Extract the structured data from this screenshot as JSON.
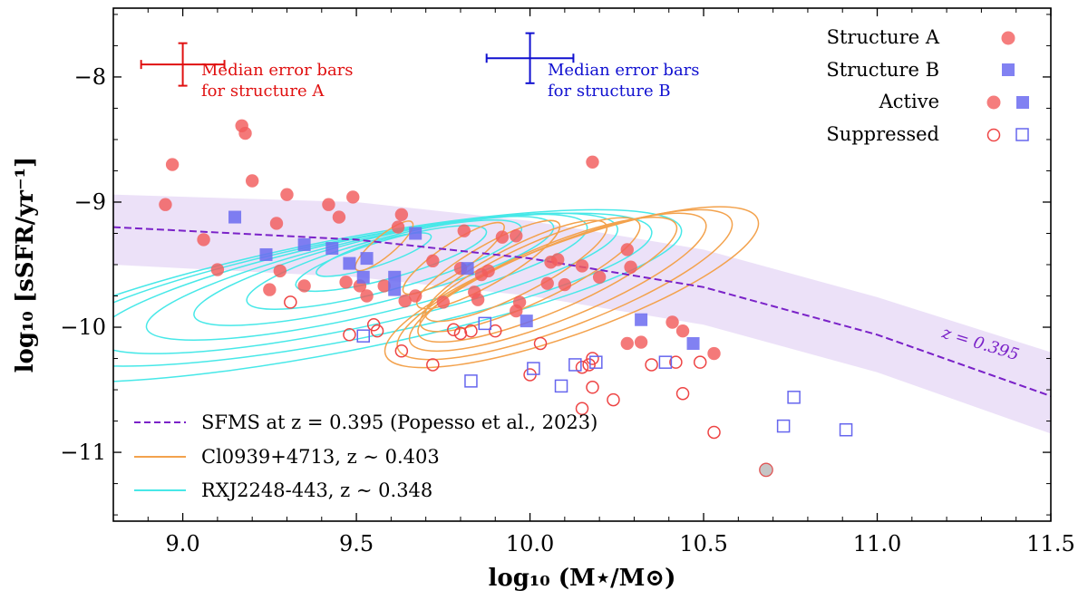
{
  "chart_data": {
    "type": "scatter",
    "xlabel": "log₁₀ (M⋆/M⊙)",
    "ylabel": "log₁₀ [sSFR/yr⁻¹]",
    "xlim": [
      8.8,
      11.5
    ],
    "ylim": [
      -11.55,
      -7.45
    ],
    "x_ticks": [
      9.0,
      9.5,
      10.0,
      10.5,
      11.0,
      11.5
    ],
    "x_tick_labels": [
      "9.0",
      "9.5",
      "10.0",
      "10.5",
      "11.0",
      "11.5"
    ],
    "y_ticks": [
      -8,
      -9,
      -10,
      -11
    ],
    "y_tick_labels": [
      "−8",
      "−9",
      "−10",
      "−11"
    ],
    "colors": {
      "structure_a": "#f25c5c",
      "structure_b": "#6b6bf0",
      "structure_a_open": "#ee4444",
      "structure_b_open": "#6666ee",
      "sfms": "#7a22c8",
      "sfms_band": "#e9dcf7",
      "cl0939": "#f3a24d",
      "rxj2248": "#47e8e8",
      "error_a": "#e01010",
      "error_b": "#1010d0"
    },
    "error_bars": [
      {
        "x": 9.0,
        "y": -7.9,
        "xerr": 0.12,
        "yerr": 0.17,
        "color": "error_a",
        "label_lines": [
          "Median error bars",
          "for structure A"
        ]
      },
      {
        "x": 10.0,
        "y": -7.85,
        "xerr": 0.125,
        "yerr": 0.2,
        "color": "error_b",
        "label_lines": [
          "Median error bars",
          "for structure B"
        ]
      }
    ],
    "legend_top": {
      "position": "top-right",
      "entries": [
        {
          "label": "Structure A",
          "markers": [
            "circle_a"
          ]
        },
        {
          "label": "Structure B",
          "markers": [
            "square_b"
          ]
        },
        {
          "label": "Active",
          "markers": [
            "circle_a",
            "square_b"
          ]
        },
        {
          "label": "Suppressed",
          "markers": [
            "circle_a_open",
            "square_b_open"
          ]
        }
      ]
    },
    "legend_bottom": {
      "position": "bottom-left",
      "entries": [
        {
          "label": "SFMS at z = 0.395 (Popesso et al., 2023)",
          "style": "dashed",
          "color": "sfms"
        },
        {
          "label": "Cl0939+4713, z ∼ 0.403",
          "style": "solid",
          "color": "cl0939"
        },
        {
          "label": "RXJ2248-443, z ∼ 0.348",
          "style": "solid",
          "color": "rxj2248"
        }
      ]
    },
    "sfms": {
      "label": "z = 0.395",
      "x": [
        8.8,
        9.5,
        10.0,
        10.5,
        11.0,
        11.5
      ],
      "y": [
        -9.2,
        -9.3,
        -9.45,
        -9.68,
        -10.06,
        -10.55
      ],
      "band_upper": [
        -8.94,
        -9.0,
        -9.15,
        -9.38,
        -9.76,
        -10.2
      ],
      "band_lower": [
        -9.5,
        -9.6,
        -9.75,
        -9.98,
        -10.36,
        -10.85
      ]
    },
    "contours_cl0939": [
      {
        "cx": 9.58,
        "cy": -9.35,
        "rx": 0.09,
        "ry": 0.17,
        "rot": 50
      },
      {
        "cx": 9.78,
        "cy": -9.45,
        "rx": 0.13,
        "ry": 0.28,
        "rot": 56
      },
      {
        "cx": 9.88,
        "cy": -9.5,
        "rx": 0.17,
        "ry": 0.38,
        "rot": 60
      },
      {
        "cx": 9.96,
        "cy": -9.55,
        "rx": 0.21,
        "ry": 0.47,
        "rot": 63
      },
      {
        "cx": 10.0,
        "cy": -9.58,
        "rx": 0.25,
        "ry": 0.56,
        "rot": 65
      },
      {
        "cx": 10.05,
        "cy": -9.62,
        "rx": 0.29,
        "ry": 0.65,
        "rot": 67
      },
      {
        "cx": 10.08,
        "cy": -9.64,
        "rx": 0.33,
        "ry": 0.74,
        "rot": 68
      },
      {
        "cx": 10.1,
        "cy": -9.66,
        "rx": 0.37,
        "ry": 0.83,
        "rot": 69
      },
      {
        "cx": 10.12,
        "cy": -9.68,
        "rx": 0.41,
        "ry": 0.92,
        "rot": 70
      }
    ],
    "contours_rxj2248": [
      {
        "cx": 9.55,
        "cy": -9.42,
        "rx": 0.1,
        "ry": 0.28,
        "rot": 72
      },
      {
        "cx": 9.6,
        "cy": -9.45,
        "rx": 0.16,
        "ry": 0.46,
        "rot": 74
      },
      {
        "cx": 9.58,
        "cy": -9.5,
        "rx": 0.22,
        "ry": 0.66,
        "rot": 75
      },
      {
        "cx": 9.55,
        "cy": -9.55,
        "rx": 0.27,
        "ry": 0.86,
        "rot": 76
      },
      {
        "cx": 9.53,
        "cy": -9.6,
        "rx": 0.32,
        "ry": 1.05,
        "rot": 77
      },
      {
        "cx": 9.5,
        "cy": -9.65,
        "rx": 0.37,
        "ry": 1.24,
        "rot": 78
      },
      {
        "cx": 9.48,
        "cy": -9.7,
        "rx": 0.42,
        "ry": 1.43,
        "rot": 79
      },
      {
        "cx": 9.45,
        "cy": -9.75,
        "rx": 0.47,
        "ry": 1.62,
        "rot": 79
      }
    ],
    "series": [
      {
        "name": "Structure A (active)",
        "marker": "circle",
        "filled": true,
        "color": "structure_a",
        "points": [
          [
            8.95,
            -9.02
          ],
          [
            8.97,
            -8.7
          ],
          [
            9.06,
            -9.3
          ],
          [
            9.1,
            -9.54
          ],
          [
            9.17,
            -8.39
          ],
          [
            9.18,
            -8.45
          ],
          [
            9.2,
            -8.83
          ],
          [
            9.25,
            -9.7
          ],
          [
            9.27,
            -9.17
          ],
          [
            9.28,
            -9.55
          ],
          [
            9.3,
            -8.94
          ],
          [
            9.35,
            -9.67
          ],
          [
            9.42,
            -9.02
          ],
          [
            9.45,
            -9.12
          ],
          [
            9.47,
            -9.64
          ],
          [
            9.49,
            -8.96
          ],
          [
            9.51,
            -9.67
          ],
          [
            9.53,
            -9.75
          ],
          [
            9.58,
            -9.67
          ],
          [
            9.62,
            -9.2
          ],
          [
            9.63,
            -9.1
          ],
          [
            9.64,
            -9.79
          ],
          [
            9.67,
            -9.75
          ],
          [
            9.72,
            -9.47
          ],
          [
            9.75,
            -9.8
          ],
          [
            9.8,
            -9.53
          ],
          [
            9.81,
            -9.23
          ],
          [
            9.84,
            -9.72
          ],
          [
            9.85,
            -9.78
          ],
          [
            9.86,
            -9.58
          ],
          [
            9.88,
            -9.55
          ],
          [
            9.92,
            -9.28
          ],
          [
            9.96,
            -9.27
          ],
          [
            9.96,
            -9.87
          ],
          [
            9.97,
            -9.8
          ],
          [
            10.05,
            -9.65
          ],
          [
            10.06,
            -9.48
          ],
          [
            10.08,
            -9.46
          ],
          [
            10.1,
            -9.66
          ],
          [
            10.15,
            -9.51
          ],
          [
            10.18,
            -8.68
          ],
          [
            10.2,
            -9.6
          ],
          [
            10.28,
            -9.38
          ],
          [
            10.28,
            -10.13
          ],
          [
            10.29,
            -9.52
          ],
          [
            10.32,
            -10.12
          ],
          [
            10.41,
            -9.96
          ],
          [
            10.44,
            -10.03
          ],
          [
            10.53,
            -10.21
          ]
        ]
      },
      {
        "name": "Structure A (suppressed)",
        "marker": "circle",
        "filled": false,
        "color": "structure_a_open",
        "points": [
          [
            9.31,
            -9.8
          ],
          [
            9.48,
            -10.06
          ],
          [
            9.55,
            -9.98
          ],
          [
            9.56,
            -10.03
          ],
          [
            9.63,
            -10.19
          ],
          [
            9.72,
            -10.3
          ],
          [
            9.78,
            -10.02
          ],
          [
            9.8,
            -10.05
          ],
          [
            9.83,
            -10.03
          ],
          [
            9.9,
            -10.03
          ],
          [
            10.0,
            -10.38
          ],
          [
            10.03,
            -10.13
          ],
          [
            10.15,
            -10.32
          ],
          [
            10.15,
            -10.65
          ],
          [
            10.17,
            -10.3
          ],
          [
            10.18,
            -10.48
          ],
          [
            10.18,
            -10.25
          ],
          [
            10.24,
            -10.58
          ],
          [
            10.35,
            -10.3
          ],
          [
            10.42,
            -10.28
          ],
          [
            10.44,
            -10.53
          ],
          [
            10.49,
            -10.28
          ],
          [
            10.53,
            -10.84
          ]
        ]
      },
      {
        "name": "Structure A (grey)",
        "marker": "circle",
        "filled": true,
        "color": "#b8b8b8",
        "edge": "#e05555",
        "points": [
          [
            10.68,
            -11.14
          ]
        ]
      },
      {
        "name": "Structure B (active)",
        "marker": "square",
        "filled": true,
        "color": "structure_b",
        "points": [
          [
            9.15,
            -9.12
          ],
          [
            9.24,
            -9.42
          ],
          [
            9.35,
            -9.34
          ],
          [
            9.43,
            -9.37
          ],
          [
            9.48,
            -9.49
          ],
          [
            9.52,
            -9.6
          ],
          [
            9.53,
            -9.45
          ],
          [
            9.61,
            -9.6
          ],
          [
            9.61,
            -9.7
          ],
          [
            9.67,
            -9.25
          ],
          [
            9.82,
            -9.53
          ],
          [
            9.99,
            -9.95
          ],
          [
            10.32,
            -9.94
          ],
          [
            10.47,
            -10.13
          ]
        ]
      },
      {
        "name": "Structure B (suppressed)",
        "marker": "square",
        "filled": false,
        "color": "structure_b_open",
        "points": [
          [
            9.52,
            -10.07
          ],
          [
            9.83,
            -10.43
          ],
          [
            9.87,
            -9.97
          ],
          [
            10.01,
            -10.33
          ],
          [
            10.09,
            -10.47
          ],
          [
            10.13,
            -10.3
          ],
          [
            10.19,
            -10.28
          ],
          [
            10.39,
            -10.28
          ],
          [
            10.73,
            -10.79
          ],
          [
            10.76,
            -10.56
          ],
          [
            10.91,
            -10.82
          ]
        ]
      }
    ]
  }
}
